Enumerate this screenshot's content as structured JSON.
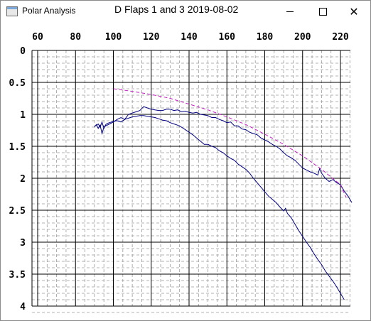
{
  "window": {
    "app_title": "Polar Analysis",
    "buttons": {
      "minimize_icon": "minimize-icon",
      "maximize_icon": "maximize-icon",
      "close_icon": "close-icon",
      "close_glyph": "✕"
    }
  },
  "chart_data": {
    "type": "line",
    "title": "D Flaps 1 and 3 2019-08-02",
    "xlabel": "",
    "ylabel": "",
    "xlim": [
      56,
      226
    ],
    "ylim": [
      0,
      4
    ],
    "y_inverted": true,
    "x_ticks": [
      "60",
      "80",
      "100",
      "120",
      "140",
      "160",
      "180",
      "200",
      "220"
    ],
    "y_ticks": [
      "0",
      "0.5",
      "1",
      "1.5",
      "2",
      "2.5",
      "3",
      "3.5",
      "4"
    ],
    "grid": true,
    "legend": "none",
    "series": [
      {
        "color": "#000080",
        "style": "solid",
        "points": [
          [
            91,
            1.18
          ],
          [
            92,
            1.15
          ],
          [
            93,
            1.2
          ],
          [
            94,
            1.12
          ],
          [
            95,
            1.22
          ],
          [
            96,
            1.16
          ],
          [
            97,
            1.14
          ],
          [
            98,
            1.13
          ],
          [
            99,
            1.12
          ],
          [
            100,
            1.11
          ],
          [
            102,
            1.1
          ],
          [
            104,
            1.12
          ],
          [
            106,
            1.08
          ],
          [
            108,
            1.06
          ],
          [
            110,
            1.04
          ],
          [
            112,
            1.03
          ],
          [
            114,
            1.02
          ],
          [
            116,
            1.02
          ],
          [
            118,
            1.03
          ],
          [
            120,
            1.04
          ],
          [
            122,
            1.05
          ],
          [
            124,
            1.07
          ],
          [
            126,
            1.09
          ],
          [
            128,
            1.1
          ],
          [
            130,
            1.13
          ],
          [
            132,
            1.15
          ],
          [
            134,
            1.17
          ],
          [
            136,
            1.2
          ],
          [
            138,
            1.24
          ],
          [
            140,
            1.28
          ],
          [
            142,
            1.32
          ],
          [
            144,
            1.37
          ],
          [
            146,
            1.42
          ],
          [
            148,
            1.47
          ],
          [
            150,
            1.47
          ],
          [
            152,
            1.5
          ],
          [
            154,
            1.52
          ],
          [
            156,
            1.57
          ],
          [
            158,
            1.6
          ],
          [
            160,
            1.65
          ],
          [
            162,
            1.69
          ],
          [
            164,
            1.72
          ],
          [
            166,
            1.78
          ],
          [
            168,
            1.82
          ],
          [
            170,
            1.86
          ],
          [
            172,
            1.92
          ],
          [
            174,
            2.0
          ],
          [
            176,
            2.07
          ],
          [
            178,
            2.14
          ],
          [
            180,
            2.21
          ],
          [
            182,
            2.28
          ],
          [
            184,
            2.33
          ],
          [
            186,
            2.38
          ],
          [
            188,
            2.45
          ],
          [
            190,
            2.51
          ],
          [
            191,
            2.47
          ],
          [
            192,
            2.55
          ],
          [
            194,
            2.62
          ],
          [
            196,
            2.72
          ],
          [
            198,
            2.82
          ],
          [
            200,
            2.91
          ],
          [
            202,
            3.0
          ],
          [
            204,
            3.08
          ],
          [
            206,
            3.18
          ],
          [
            208,
            3.27
          ],
          [
            210,
            3.35
          ],
          [
            212,
            3.45
          ],
          [
            214,
            3.53
          ],
          [
            216,
            3.61
          ],
          [
            218,
            3.7
          ],
          [
            220,
            3.8
          ],
          [
            222,
            3.9
          ]
        ]
      },
      {
        "color": "#000080",
        "style": "solid",
        "points": [
          [
            90,
            1.2
          ],
          [
            91,
            1.16
          ],
          [
            92,
            1.22
          ],
          [
            93,
            1.17
          ],
          [
            94,
            1.3
          ],
          [
            95,
            1.2
          ],
          [
            96,
            1.18
          ],
          [
            98,
            1.15
          ],
          [
            100,
            1.12
          ],
          [
            102,
            1.08
          ],
          [
            104,
            1.05
          ],
          [
            106,
            1.08
          ],
          [
            108,
            1.0
          ],
          [
            110,
            0.98
          ],
          [
            112,
            0.96
          ],
          [
            114,
            0.94
          ],
          [
            116,
            0.88
          ],
          [
            118,
            0.9
          ],
          [
            120,
            0.92
          ],
          [
            122,
            0.93
          ],
          [
            124,
            0.94
          ],
          [
            126,
            0.94
          ],
          [
            128,
            0.92
          ],
          [
            130,
            0.92
          ],
          [
            132,
            0.94
          ],
          [
            134,
            0.93
          ],
          [
            136,
            0.96
          ],
          [
            138,
            0.95
          ],
          [
            140,
            0.97
          ],
          [
            142,
            0.98
          ],
          [
            144,
            0.97
          ],
          [
            146,
            1.0
          ],
          [
            148,
            1.01
          ],
          [
            150,
            1.02
          ],
          [
            152,
            1.05
          ],
          [
            154,
            1.05
          ],
          [
            156,
            1.08
          ],
          [
            158,
            1.1
          ],
          [
            160,
            1.13
          ],
          [
            162,
            1.12
          ],
          [
            164,
            1.18
          ],
          [
            166,
            1.18
          ],
          [
            168,
            1.23
          ],
          [
            170,
            1.24
          ],
          [
            172,
            1.28
          ],
          [
            174,
            1.3
          ],
          [
            176,
            1.32
          ],
          [
            178,
            1.37
          ],
          [
            180,
            1.4
          ],
          [
            182,
            1.43
          ],
          [
            184,
            1.47
          ],
          [
            186,
            1.5
          ],
          [
            188,
            1.54
          ],
          [
            190,
            1.6
          ],
          [
            192,
            1.65
          ],
          [
            194,
            1.68
          ],
          [
            196,
            1.72
          ],
          [
            198,
            1.78
          ],
          [
            200,
            1.84
          ],
          [
            202,
            1.87
          ],
          [
            204,
            1.9
          ],
          [
            206,
            1.92
          ],
          [
            208,
            1.95
          ],
          [
            209,
            1.85
          ],
          [
            210,
            1.92
          ],
          [
            212,
            2.0
          ],
          [
            214,
            2.05
          ],
          [
            216,
            2.02
          ],
          [
            218,
            2.07
          ],
          [
            220,
            2.1
          ],
          [
            222,
            2.2
          ],
          [
            224,
            2.28
          ],
          [
            226,
            2.38
          ]
        ]
      },
      {
        "color": "#c020c0",
        "style": "dashed",
        "points": [
          [
            100,
            0.6
          ],
          [
            110,
            0.64
          ],
          [
            120,
            0.69
          ],
          [
            130,
            0.75
          ],
          [
            140,
            0.84
          ],
          [
            150,
            0.93
          ],
          [
            160,
            1.04
          ],
          [
            170,
            1.16
          ],
          [
            180,
            1.31
          ],
          [
            190,
            1.47
          ],
          [
            200,
            1.65
          ],
          [
            210,
            1.86
          ],
          [
            220,
            2.1
          ],
          [
            223,
            2.3
          ]
        ]
      }
    ]
  }
}
